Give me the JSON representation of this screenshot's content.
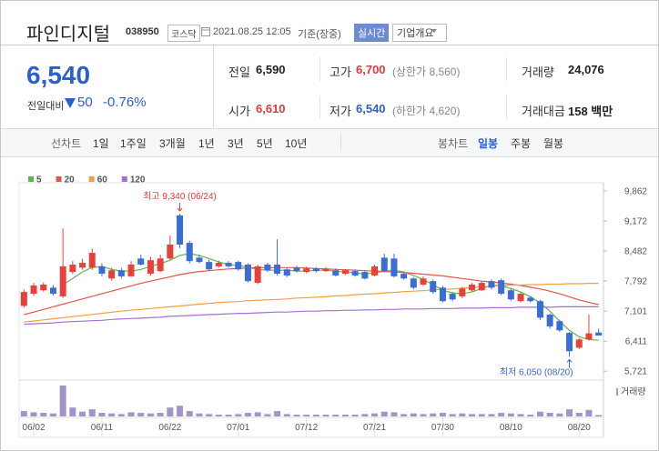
{
  "header": {
    "name": "파인디지털",
    "code": "038950",
    "market": "코스닥",
    "timestamp": "2021.08.25 12:05",
    "basis": "기준(장중)",
    "realtime": "실시간",
    "company": "기업개요"
  },
  "quote": {
    "price": "6,540",
    "change_label": "전일대비",
    "change": "50",
    "change_pct": "-0.76%"
  },
  "stats": [
    {
      "label": "전일",
      "value": "6,590"
    },
    {
      "label": "고가",
      "value": "6,700",
      "note": "(상한가 8,560)"
    },
    {
      "label": "거래량",
      "value": "24,076"
    },
    {
      "label": "시가",
      "value": "6,610"
    },
    {
      "label": "저가",
      "value": "6,540",
      "note": "(하한가 4,620)"
    },
    {
      "label": "거래대금",
      "value": "158 백만"
    }
  ],
  "tabs": {
    "line_chart": "선차트",
    "line_periods": [
      "1일",
      "1주일",
      "3개월",
      "1년",
      "3년",
      "5년",
      "10년"
    ],
    "candle_chart": "봉차트",
    "candle_periods": [
      "일봉",
      "주봉",
      "월봉"
    ],
    "selected": "일봉"
  },
  "chart_data": {
    "type": "candlestick",
    "categories": [
      null,
      "06/02",
      null,
      null,
      null,
      null,
      null,
      null,
      "06/11",
      null,
      null,
      null,
      null,
      null,
      null,
      "06/22",
      null,
      null,
      null,
      null,
      null,
      null,
      "07/01",
      null,
      null,
      null,
      null,
      null,
      null,
      "07/12",
      null,
      null,
      null,
      null,
      null,
      null,
      "07/21",
      null,
      null,
      null,
      null,
      null,
      null,
      "07/30",
      null,
      null,
      null,
      null,
      null,
      null,
      "08/10",
      null,
      null,
      null,
      null,
      null,
      null,
      "08/20",
      null,
      null
    ],
    "open": [
      7220,
      7500,
      7580,
      7640,
      7440,
      8000,
      8100,
      8100,
      8130,
      7850,
      8040,
      7900,
      8310,
      7960,
      8020,
      8310,
      9300,
      8670,
      8330,
      8230,
      8130,
      8210,
      8230,
      8170,
      7750,
      8170,
      8170,
      8060,
      8100,
      8000,
      8080,
      8020,
      8040,
      7960,
      8020,
      8000,
      7920,
      8330,
      8310,
      7960,
      7850,
      7710,
      7790,
      7640,
      7500,
      7440,
      7580,
      7580,
      7790,
      7810,
      7580,
      7330,
      7410,
      7330,
      7020,
      6870,
      6600,
      6260,
      6450,
      6610
    ],
    "high": [
      7600,
      7750,
      7760,
      7700,
      9000,
      8250,
      8300,
      8540,
      8200,
      8100,
      8100,
      8250,
      8400,
      8350,
      8400,
      8840,
      9340,
      8720,
      8400,
      8280,
      8260,
      8250,
      8260,
      8200,
      8170,
      8210,
      8750,
      8100,
      8140,
      8120,
      8110,
      8110,
      8080,
      8070,
      8060,
      8040,
      8170,
      8420,
      8420,
      8000,
      7880,
      7900,
      7830,
      7680,
      7540,
      7660,
      7750,
      7790,
      7830,
      7850,
      7620,
      7540,
      7450,
      7360,
      7050,
      6900,
      6620,
      6480,
      7020,
      6700
    ],
    "low": [
      7180,
      7450,
      7550,
      7460,
      7400,
      7950,
      8050,
      8050,
      7900,
      7800,
      7850,
      7880,
      8150,
      7920,
      8000,
      8280,
      8550,
      8200,
      8200,
      8020,
      8100,
      8100,
      8030,
      7760,
      7720,
      8000,
      7920,
      7880,
      7990,
      7970,
      7990,
      8000,
      7900,
      7930,
      7890,
      7830,
      7900,
      7990,
      7870,
      7820,
      7600,
      7680,
      7500,
      7300,
      7330,
      7400,
      7550,
      7560,
      7600,
      7470,
      7340,
      7300,
      7300,
      6900,
      6700,
      6620,
      6050,
      6230,
      6420,
      6540
    ],
    "close": [
      7540,
      7690,
      7710,
      7500,
      8130,
      8170,
      8210,
      8440,
      7960,
      8040,
      7900,
      8170,
      8170,
      8270,
      8310,
      8630,
      8630,
      8250,
      8230,
      8060,
      8210,
      8130,
      8060,
      7790,
      8130,
      8040,
      7960,
      7920,
      8020,
      8080,
      8020,
      8080,
      7920,
      8040,
      7920,
      7850,
      8130,
      8020,
      7900,
      7850,
      7640,
      7850,
      7540,
      7330,
      7370,
      7620,
      7710,
      7750,
      7640,
      7500,
      7370,
      7500,
      7330,
      6950,
      6750,
      6660,
      6180,
      6450,
      6590,
      6540
    ],
    "up_color": "#e8413c",
    "down_color": "#3a6ed6",
    "moving_averages": [
      {
        "name": "5",
        "color": "#59b84a",
        "values": [
          null,
          null,
          null,
          null,
          7710,
          7850,
          8000,
          8105,
          8125,
          8060,
          8020,
          8020,
          8060,
          8125,
          8190,
          8270,
          8380,
          8420,
          8380,
          8310,
          8230,
          8170,
          8150,
          8110,
          8060,
          8040,
          8040,
          8040,
          8020,
          8020,
          8040,
          8040,
          8020,
          8000,
          7980,
          7960,
          7980,
          8020,
          8040,
          8000,
          7920,
          7830,
          7710,
          7580,
          7520,
          7500,
          7540,
          7620,
          7690,
          7690,
          7620,
          7540,
          7430,
          7290,
          7100,
          6870,
          6660,
          6510,
          6450,
          6430
        ]
      },
      {
        "name": "20",
        "color": "#e2554a",
        "values": [
          7020,
          7080,
          7140,
          7200,
          7260,
          7320,
          7380,
          7440,
          7500,
          7560,
          7620,
          7680,
          7740,
          7790,
          7840,
          7890,
          7940,
          7980,
          8010,
          8030,
          8050,
          8070,
          8080,
          8090,
          8100,
          8100,
          8100,
          8100,
          8100,
          8090,
          8080,
          8070,
          8060,
          8050,
          8040,
          8030,
          8020,
          8010,
          8000,
          7990,
          7970,
          7950,
          7930,
          7910,
          7880,
          7850,
          7820,
          7790,
          7770,
          7750,
          7720,
          7690,
          7650,
          7610,
          7560,
          7500,
          7430,
          7360,
          7300,
          7250
        ]
      },
      {
        "name": "60",
        "color": "#f0a040",
        "values": [
          6850,
          6875,
          6900,
          6925,
          6950,
          6975,
          7000,
          7025,
          7050,
          7075,
          7100,
          7120,
          7140,
          7160,
          7180,
          7200,
          7220,
          7240,
          7260,
          7280,
          7300,
          7310,
          7320,
          7340,
          7350,
          7360,
          7370,
          7380,
          7400,
          7410,
          7420,
          7430,
          7450,
          7460,
          7480,
          7490,
          7500,
          7520,
          7530,
          7550,
          7560,
          7570,
          7590,
          7600,
          7610,
          7630,
          7640,
          7660,
          7670,
          7690,
          7700,
          7700,
          7710,
          7710,
          7720,
          7720,
          7730,
          7730,
          7740,
          7740
        ]
      },
      {
        "name": "120",
        "color": "#a66fd6",
        "values": [
          6800,
          6810,
          6820,
          6830,
          6850,
          6860,
          6870,
          6880,
          6890,
          6910,
          6920,
          6930,
          6940,
          6950,
          6960,
          6980,
          6990,
          7000,
          7010,
          7020,
          7030,
          7040,
          7050,
          7050,
          7060,
          7070,
          7080,
          7080,
          7090,
          7100,
          7100,
          7110,
          7110,
          7120,
          7120,
          7130,
          7130,
          7140,
          7140,
          7150,
          7150,
          7150,
          7160,
          7160,
          7160,
          7170,
          7170,
          7170,
          7180,
          7180,
          7180,
          7190,
          7190,
          7190,
          7190,
          7200,
          7200,
          7200,
          7200,
          7200
        ]
      }
    ],
    "volume": {
      "name": "거래량",
      "color": "#a294c8",
      "ylim": [
        0,
        550000
      ],
      "values": [
        90000,
        70000,
        60000,
        50000,
        520000,
        150000,
        80000,
        120000,
        60000,
        50000,
        40000,
        70000,
        60000,
        50000,
        60000,
        150000,
        180000,
        90000,
        50000,
        40000,
        30000,
        30000,
        40000,
        60000,
        70000,
        40000,
        90000,
        40000,
        30000,
        30000,
        30000,
        30000,
        30000,
        30000,
        30000,
        40000,
        50000,
        80000,
        70000,
        40000,
        50000,
        40000,
        50000,
        60000,
        40000,
        50000,
        40000,
        40000,
        40000,
        60000,
        50000,
        40000,
        30000,
        80000,
        60000,
        50000,
        120000,
        60000,
        110000,
        24076
      ]
    },
    "ylim": [
      5600,
      10050
    ],
    "yticks": [
      {
        "value": 9862,
        "label": "9,862"
      },
      {
        "value": 9172,
        "label": "9,172"
      },
      {
        "value": 8482,
        "label": "8,482"
      },
      {
        "value": 7792,
        "label": "7,792"
      },
      {
        "value": 7101,
        "label": "7,101"
      },
      {
        "value": 6411,
        "label": "6,411"
      },
      {
        "value": 5721,
        "label": "5,721"
      }
    ],
    "annotations": [
      {
        "text": "최고 9,340 (06/24)",
        "value": 9340,
        "color": "#e03c3c"
      },
      {
        "text": "최저 6,050 (08/20)",
        "value": 6050,
        "color": "#3a66c4"
      }
    ]
  }
}
